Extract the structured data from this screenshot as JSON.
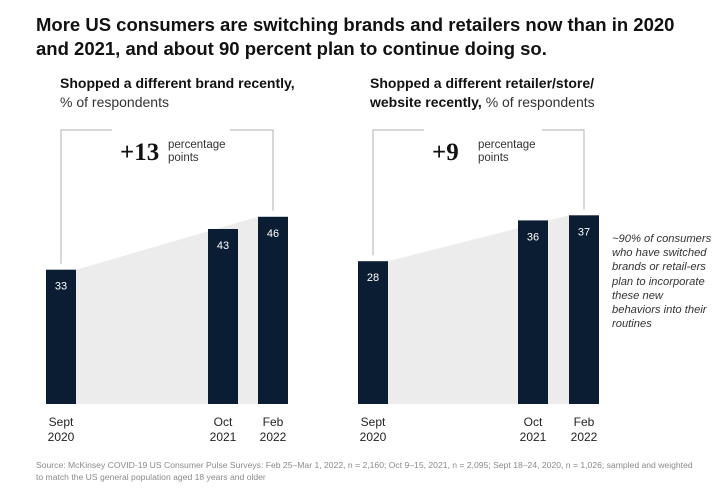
{
  "headline": "More US consumers are switching brands and retailers now than in 2020 and 2021, and about 90 percent plan to continue doing so.",
  "chart_data": [
    {
      "type": "bar",
      "title_bold": "Shopped a different brand recently,",
      "title_rest": "% of respondents",
      "categories": [
        [
          "Sept",
          "2020"
        ],
        [
          "Oct",
          "2021"
        ],
        [
          "Feb",
          "2022"
        ]
      ],
      "values": [
        33,
        43,
        46
      ],
      "change_value": "+13",
      "change_label": [
        "percentage",
        "points"
      ],
      "bar_color": "#0b1d33",
      "shade_color": "#ececec"
    },
    {
      "type": "bar",
      "title_bold": "Shopped a different retailer/store/ website recently,",
      "title_rest": "% of respondents",
      "categories": [
        [
          "Sept",
          "2020"
        ],
        [
          "Oct",
          "2021"
        ],
        [
          "Feb",
          "2022"
        ]
      ],
      "values": [
        28,
        36,
        37
      ],
      "change_value": "+9",
      "change_label": [
        "percentage",
        "points"
      ],
      "bar_color": "#0b1d33",
      "shade_color": "#ececec"
    }
  ],
  "note": "~90% of consumers who have switched brands or retail-ers plan to incorporate these new behaviors into their routines",
  "source": "Source: McKinsey COVID-19 US Consumer Pulse Surveys: Feb 25–Mar 1, 2022, n = 2,160; Oct 9–15, 2021, n = 2,095; Sept 18–24, 2020, n = 1,026; sampled and weighted to match the US general population aged 18 years and older"
}
